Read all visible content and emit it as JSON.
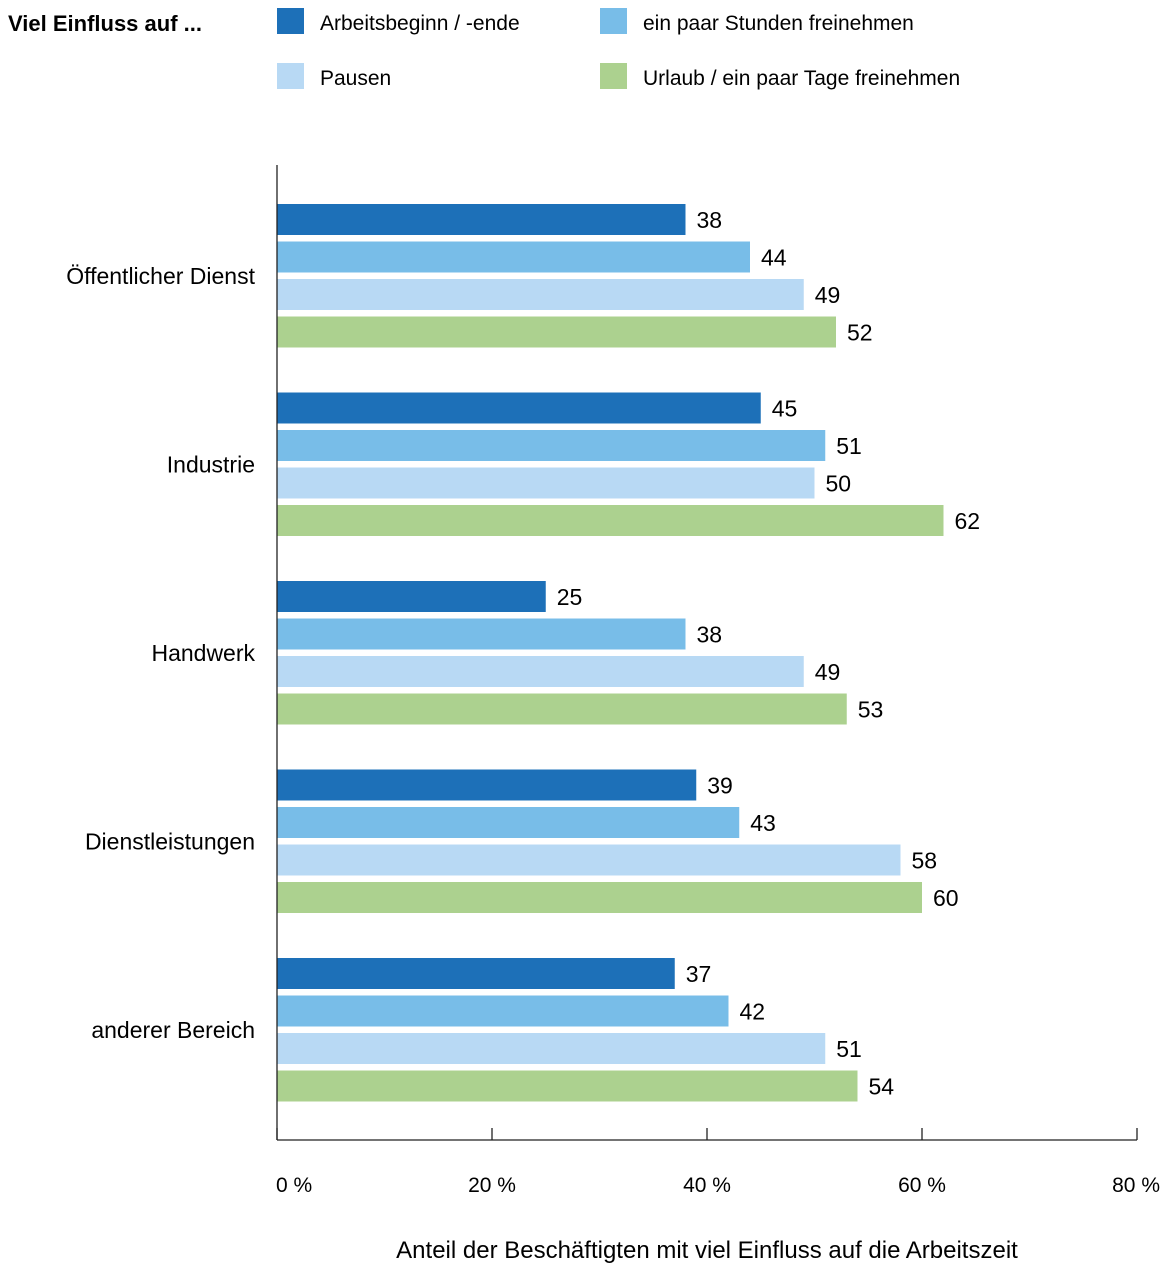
{
  "chart_data": {
    "type": "bar",
    "orientation": "horizontal",
    "legend_title": "Viel Einfluss auf ...",
    "legend_placement": "top",
    "xlabel": "Anteil der Beschäftigten mit viel Einfluss auf die Arbeitszeit",
    "ylabel": "",
    "xlim": [
      0,
      80
    ],
    "grid": false,
    "x_ticks": [
      0,
      20,
      40,
      60,
      80
    ],
    "x_tick_labels": [
      "0 %",
      "20 %",
      "40 %",
      "60 %",
      "80 %"
    ],
    "categories": [
      "Öffentlicher Dienst",
      "Industrie",
      "Handwerk",
      "Dienstleistungen",
      "anderer Bereich"
    ],
    "series": [
      {
        "name": "Arbeitsbeginn / -ende",
        "color": "#1d70b8",
        "values": [
          38,
          45,
          25,
          39,
          37
        ]
      },
      {
        "name": "ein paar Stunden freinehmen",
        "color": "#78bde8",
        "values": [
          44,
          51,
          38,
          43,
          42
        ]
      },
      {
        "name": "Pausen",
        "color": "#b8d9f4",
        "values": [
          49,
          50,
          49,
          58,
          51
        ]
      },
      {
        "name": "Urlaub / ein paar Tage freinehmen",
        "color": "#acd18f",
        "values": [
          52,
          62,
          53,
          60,
          54
        ]
      }
    ]
  }
}
